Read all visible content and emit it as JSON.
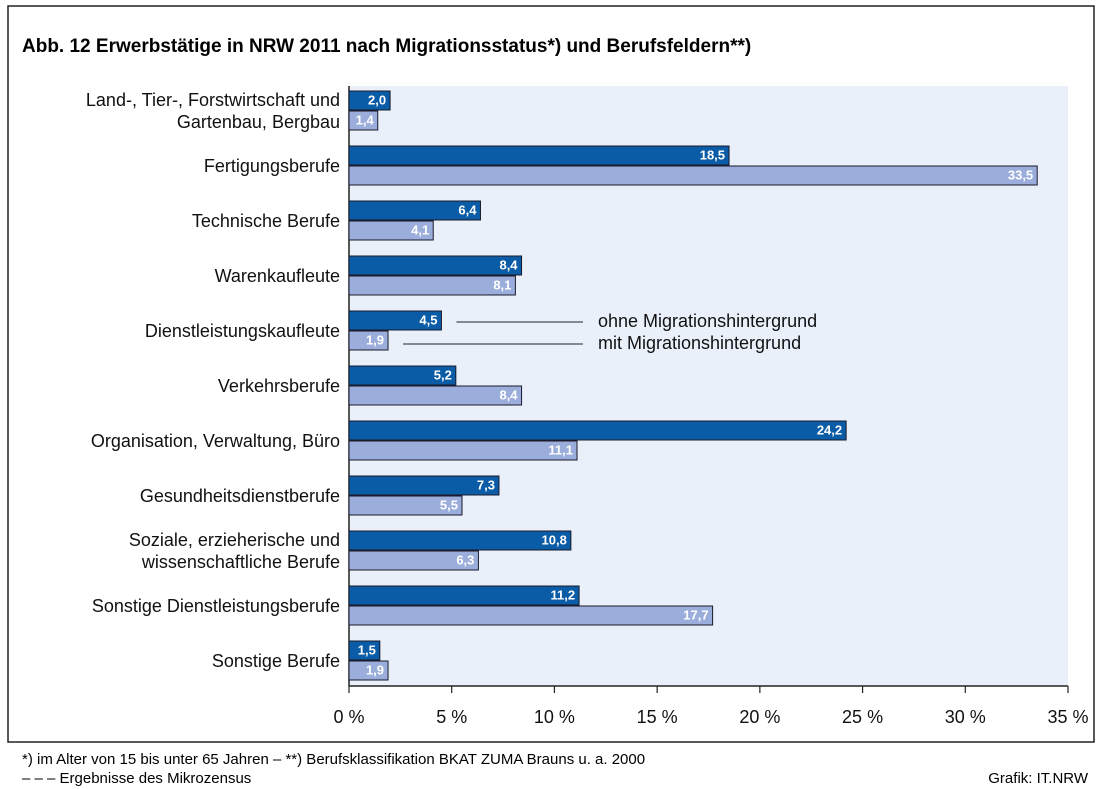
{
  "chart_data": {
    "type": "barh",
    "title": "Abb. 12  Erwerbstätige in NRW 2011 nach Migrationsstatus*) und Berufsfeldern**)",
    "categories": [
      "Land-, Tier-, Forstwirtschaft und\nGartenbau, Bergbau",
      "Fertigungsberufe",
      "Technische Berufe",
      "Warenkaufleute",
      "Dienstleistungskaufleute",
      "Verkehrsberufe",
      "Organisation, Verwaltung, Büro",
      "Gesundheitsdienstberufe",
      "Soziale, erzieherische und\nwissenschaftliche Berufe",
      "Sonstige Dienstleistungsberufe",
      "Sonstige Berufe"
    ],
    "series": [
      {
        "name": "ohne Migrationshintergrund",
        "color": "#0b5ca6",
        "values": [
          2.0,
          18.5,
          6.4,
          8.4,
          4.5,
          5.2,
          24.2,
          7.3,
          10.8,
          11.2,
          1.5
        ],
        "value_labels": [
          "2,0",
          "18,5",
          "6,4",
          "8,4",
          "4,5",
          "5,2",
          "24,2",
          "7,3",
          "10,8",
          "11,2",
          "1,5"
        ]
      },
      {
        "name": "mit Migrationshintergrund",
        "color": "#9aaddb",
        "values": [
          1.4,
          33.5,
          4.1,
          8.1,
          1.9,
          8.4,
          11.1,
          5.5,
          6.3,
          17.7,
          1.9
        ],
        "value_labels": [
          "1,4",
          "33,5",
          "4,1",
          "8,1",
          "1,9",
          "8,4",
          "11,1",
          "5,5",
          "6,3",
          "17,7",
          "1,9"
        ]
      }
    ],
    "xlim": [
      0,
      35
    ],
    "xticks": [
      {
        "value": 0,
        "label": "0 %"
      },
      {
        "value": 5,
        "label": "5 %"
      },
      {
        "value": 10,
        "label": "10 %"
      },
      {
        "value": 15,
        "label": "15 %"
      },
      {
        "value": 20,
        "label": "20 %"
      },
      {
        "value": 25,
        "label": "25 %"
      },
      {
        "value": 30,
        "label": "30 %"
      },
      {
        "value": 35,
        "label": "35 %"
      }
    ],
    "footnote": "*) im Alter von 15 bis unter 65 Jahren – **) Berufsklassifikation BKAT ZUMA Brauns u. a. 2000",
    "source_note": "– – – Ergebnisse des Mikrozensus",
    "credit": "Grafik: IT.NRW"
  }
}
